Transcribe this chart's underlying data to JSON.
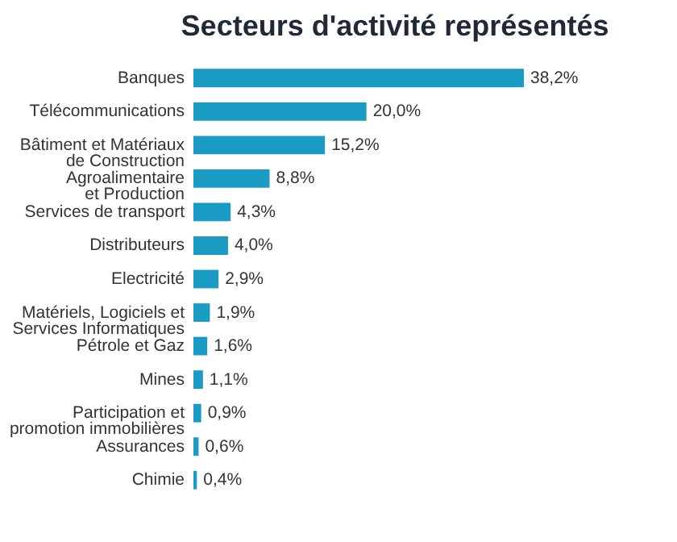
{
  "chart_data": {
    "type": "bar",
    "orientation": "horizontal",
    "title": "Secteurs d'activité représentés",
    "categories": [
      "Banques",
      "Télécommunications",
      "Bâtiment et Matériaux\nde Construction",
      "Agroalimentaire\net Production",
      "Services de transport",
      "Distributeurs",
      "Electricité",
      "Matériels, Logiciels et\nServices Informatiques",
      "Pétrole et Gaz",
      "Mines",
      "Participation et\npromotion immobilières",
      "Assurances",
      "Chimie"
    ],
    "values": [
      38.2,
      20.0,
      15.2,
      8.8,
      4.3,
      4.0,
      2.9,
      1.9,
      1.6,
      1.1,
      0.9,
      0.6,
      0.4
    ],
    "value_labels": [
      "38,2%",
      "20,0%",
      "15,2%",
      "8,8%",
      "4,3%",
      "4,0%",
      "2,9%",
      "1,9%",
      "1,6%",
      "1,1%",
      "0,9%",
      "0,6%",
      "0,4%"
    ],
    "color": "#1a9bc4"
  }
}
